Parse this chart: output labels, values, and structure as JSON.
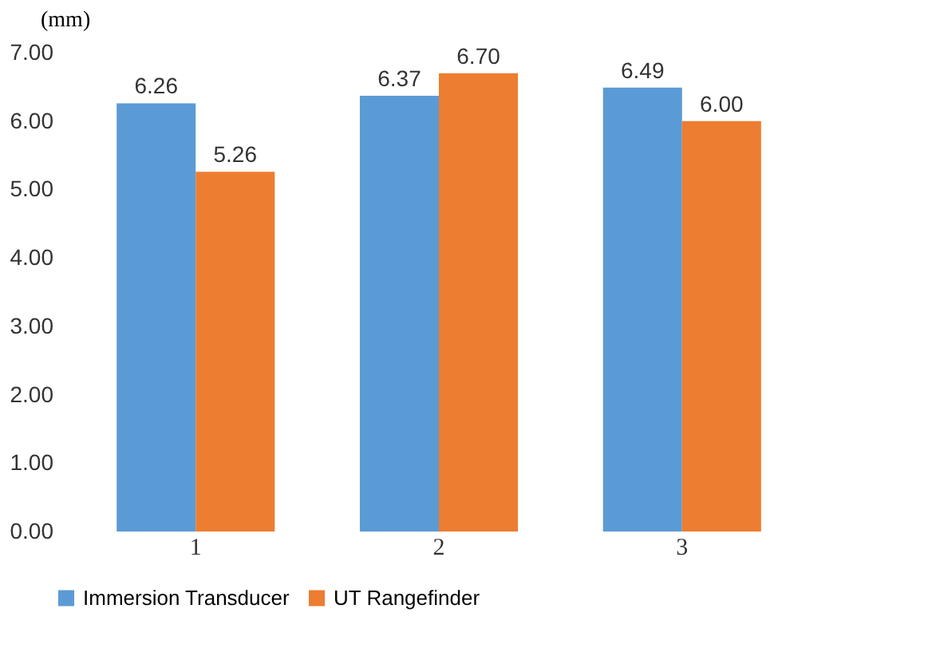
{
  "chart_data": {
    "type": "bar",
    "ylabel": "(mm)",
    "categories": [
      "1",
      "2",
      "3"
    ],
    "series": [
      {
        "name": "Immersion Transducer",
        "color": "#5b9bd5",
        "values": [
          6.26,
          6.37,
          6.49
        ],
        "value_labels": [
          "6.26",
          "6.37",
          "6.49"
        ]
      },
      {
        "name": "UT Rangefinder",
        "color": "#ed7d31",
        "values": [
          5.26,
          6.7,
          6.0
        ],
        "value_labels": [
          "5.26",
          "6.70",
          "6.00"
        ]
      }
    ],
    "ylim": [
      0,
      7
    ],
    "yticks": [
      {
        "value": 0,
        "label": "0.00"
      },
      {
        "value": 1,
        "label": "1.00"
      },
      {
        "value": 2,
        "label": "2.00"
      },
      {
        "value": 3,
        "label": "3.00"
      },
      {
        "value": 4,
        "label": "4.00"
      },
      {
        "value": 5,
        "label": "5.00"
      },
      {
        "value": 6,
        "label": "6.00"
      },
      {
        "value": 7,
        "label": "7.00"
      }
    ],
    "grid": false,
    "legend": "bottom"
  }
}
